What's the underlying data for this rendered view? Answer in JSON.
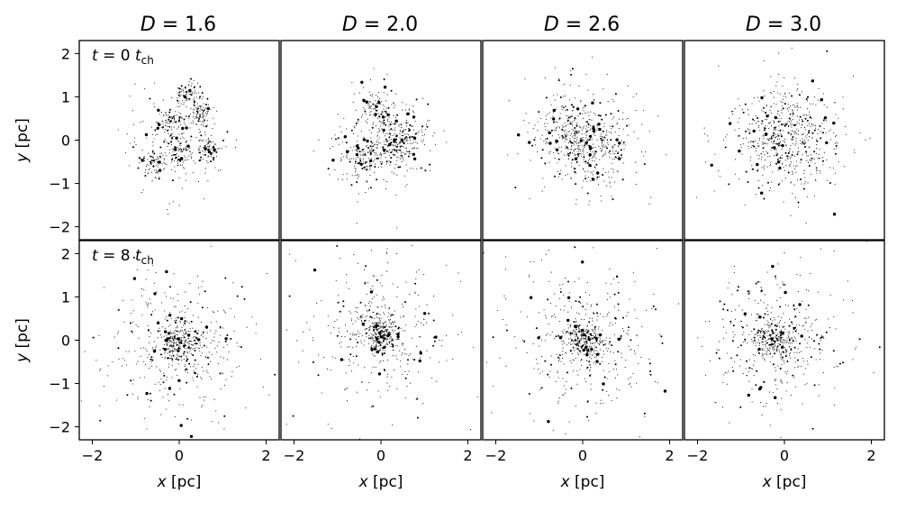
{
  "chart_data": {
    "type": "scatter",
    "layout": "2 rows x 4 columns small multiples",
    "columns": [
      {
        "label": "D = 1.6",
        "fractal_dimension": 1.6
      },
      {
        "label": "D = 2.0",
        "fractal_dimension": 2.0
      },
      {
        "label": "D = 2.6",
        "fractal_dimension": 2.6
      },
      {
        "label": "D = 3.0",
        "fractal_dimension": 3.0
      }
    ],
    "rows": [
      {
        "label": "t = 0 t_ch",
        "time_tch": 0
      },
      {
        "label": "t = 8 t_ch",
        "time_tch": 8
      }
    ],
    "xlabel": "x [pc]",
    "ylabel": "y [pc]",
    "xlim": [
      -2.3,
      2.3
    ],
    "ylim": [
      -2.3,
      2.3
    ],
    "xticks": [
      -2,
      0,
      2
    ],
    "yticks": [
      -2,
      -1,
      0,
      1,
      2
    ],
    "grid": false,
    "marker_color": "#000000",
    "stars_per_panel": 1000,
    "subclusters": {
      "D=1.6,t=0": [
        [
          0.2,
          1.1
        ],
        [
          0.5,
          0.6
        ],
        [
          0,
          -0.3
        ],
        [
          -0.6,
          -0.5
        ],
        [
          0.7,
          -0.2
        ],
        [
          -0.2,
          0.4
        ]
      ],
      "D=2.0,t=0": [
        [
          0.3,
          -0.2
        ],
        [
          -0.1,
          0.7
        ],
        [
          -0.5,
          -0.4
        ],
        [
          0.6,
          0.1
        ]
      ],
      "D=2.6,t=0": [
        [
          0,
          0
        ],
        [
          -0.4,
          0.2
        ],
        [
          0.3,
          -0.2
        ]
      ],
      "D=3.0,t=0": [
        [
          0,
          0
        ]
      ]
    },
    "centers_t8": {
      "D=1.6": [
        0,
        -0.1
      ],
      "D=2.0": [
        0,
        0.2
      ],
      "D=2.6": [
        0.05,
        0
      ],
      "D=3.0": [
        -0.2,
        0
      ]
    }
  }
}
